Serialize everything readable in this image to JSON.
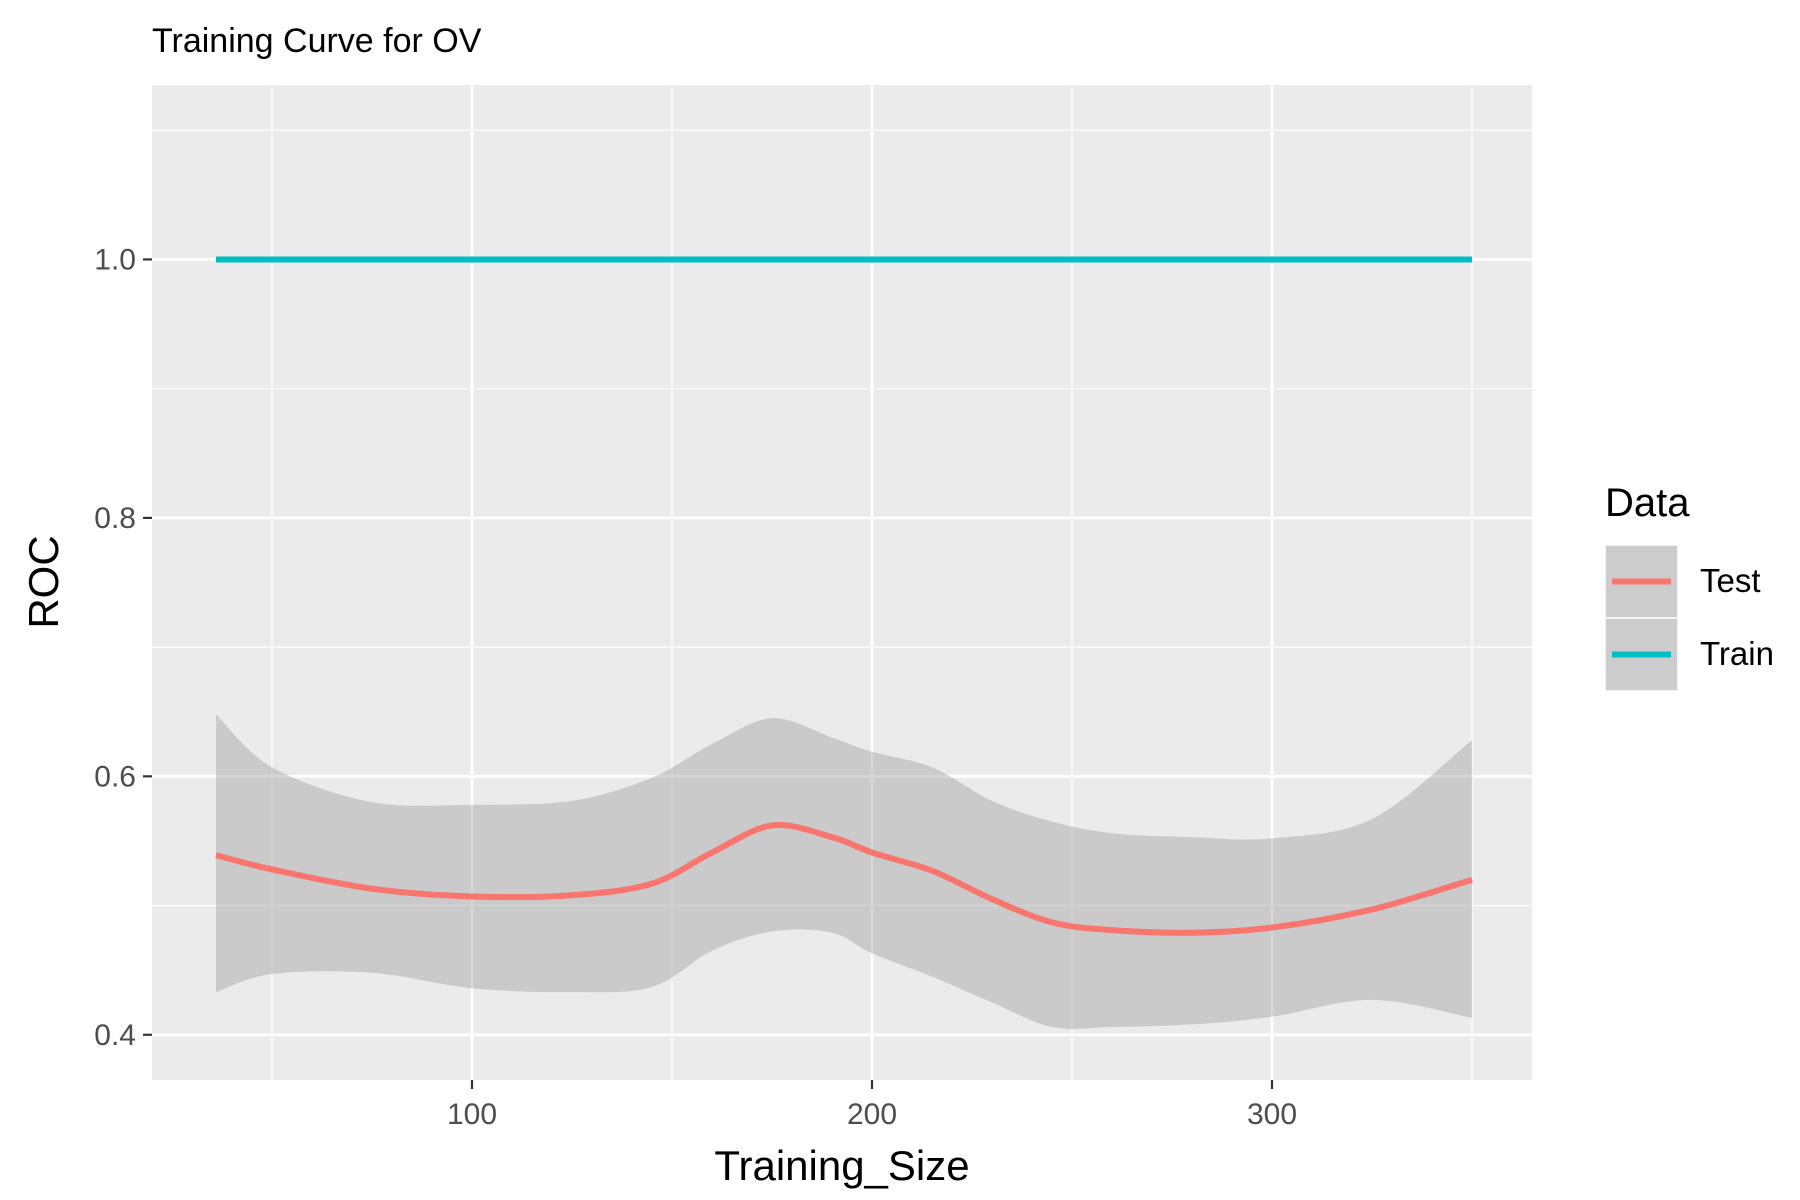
{
  "chart_data": {
    "type": "line",
    "title": "Training Curve for OV",
    "xlabel": "Training_Size",
    "ylabel": "ROC",
    "xlim": [
      20,
      365
    ],
    "ylim": [
      0.365,
      1.135
    ],
    "x_ticks": [
      100,
      200,
      300
    ],
    "x_tick_labels": [
      "100",
      "200",
      "300"
    ],
    "y_ticks": [
      0.4,
      0.6,
      0.8,
      1.0
    ],
    "y_tick_labels": [
      "0.4",
      "0.6",
      "0.8",
      "1.0"
    ],
    "x_minor_grid": [
      50,
      150,
      250,
      350
    ],
    "y_minor_grid": [
      0.5,
      0.7,
      0.9,
      1.1
    ],
    "grid": true,
    "background": "#EBEBEB",
    "legend": {
      "title": "Data",
      "position": "right",
      "entries": [
        "Test",
        "Train"
      ]
    },
    "series": [
      {
        "name": "Test",
        "color": "#F8766D",
        "x": [
          36,
          50,
          75,
          100,
          125,
          145,
          160,
          175,
          190,
          200,
          215,
          230,
          245,
          260,
          280,
          300,
          325,
          350
        ],
        "y": [
          0.539,
          0.528,
          0.513,
          0.507,
          0.508,
          0.517,
          0.541,
          0.562,
          0.553,
          0.541,
          0.527,
          0.505,
          0.487,
          0.481,
          0.479,
          0.483,
          0.497,
          0.52
        ],
        "ci_lower": [
          0.433,
          0.447,
          0.448,
          0.436,
          0.433,
          0.437,
          0.465,
          0.48,
          0.479,
          0.463,
          0.445,
          0.425,
          0.406,
          0.406,
          0.408,
          0.414,
          0.427,
          0.413
        ],
        "ci_upper": [
          0.648,
          0.607,
          0.58,
          0.578,
          0.581,
          0.599,
          0.625,
          0.645,
          0.63,
          0.619,
          0.607,
          0.581,
          0.565,
          0.556,
          0.553,
          0.552,
          0.567,
          0.628
        ]
      },
      {
        "name": "Train",
        "color": "#00BFC4",
        "x": [
          36,
          350
        ],
        "y": [
          1.0,
          1.0
        ]
      }
    ]
  }
}
